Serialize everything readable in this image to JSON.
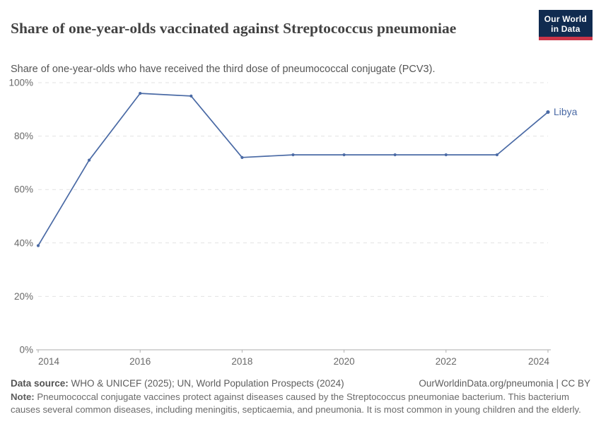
{
  "header": {
    "title": "Share of one-year-olds vaccinated against Streptococcus pneumoniae",
    "subtitle": "Share of one-year-olds who have received the third dose of pneumococcal conjugate (PCV3).",
    "logo": {
      "line1": "Our World",
      "line2": "in Data"
    }
  },
  "chart_data": {
    "type": "line",
    "title": "Share of one-year-olds vaccinated against Streptococcus pneumoniae",
    "x": [
      2014,
      2015,
      2016,
      2017,
      2018,
      2019,
      2020,
      2021,
      2022,
      2023,
      2024
    ],
    "series": [
      {
        "name": "Libya",
        "color": "#4a6aa5",
        "values": [
          39,
          71,
          96,
          95,
          72,
          73,
          73,
          73,
          73,
          73,
          89
        ]
      }
    ],
    "entity_label": "Libya",
    "xlabel": "",
    "ylabel": "",
    "xlim": [
      2014,
      2024
    ],
    "ylim": [
      0,
      100
    ],
    "x_ticks": [
      2014,
      2016,
      2018,
      2020,
      2022,
      2024
    ],
    "y_ticks": [
      0,
      20,
      40,
      60,
      80,
      100
    ],
    "y_tick_suffix": "%",
    "grid": "horizontal-dashed",
    "legend_position": "end-of-line-label"
  },
  "footer": {
    "data_source_label": "Data source:",
    "data_source_text": " WHO & UNICEF (2025); UN, World Population Prospects (2024)",
    "attribution": "OurWorldinData.org/pneumonia | CC BY",
    "note_label": "Note:",
    "note_text": " Pneumococcal conjugate vaccines protect against diseases caused by the Streptococcus pneumoniae bacterium. This bacterium causes several common diseases, including meningitis, septicaemia, and pneumonia. It is most common in young children and the elderly."
  },
  "colors": {
    "line": "#4a6aa5",
    "entity_label": "#4a6aa5",
    "grid": "#e2e2e2",
    "axis": "#aeaeae",
    "tick_label": "#696969",
    "logo_bg": "#102b50",
    "logo_bar": "#ca3548"
  }
}
